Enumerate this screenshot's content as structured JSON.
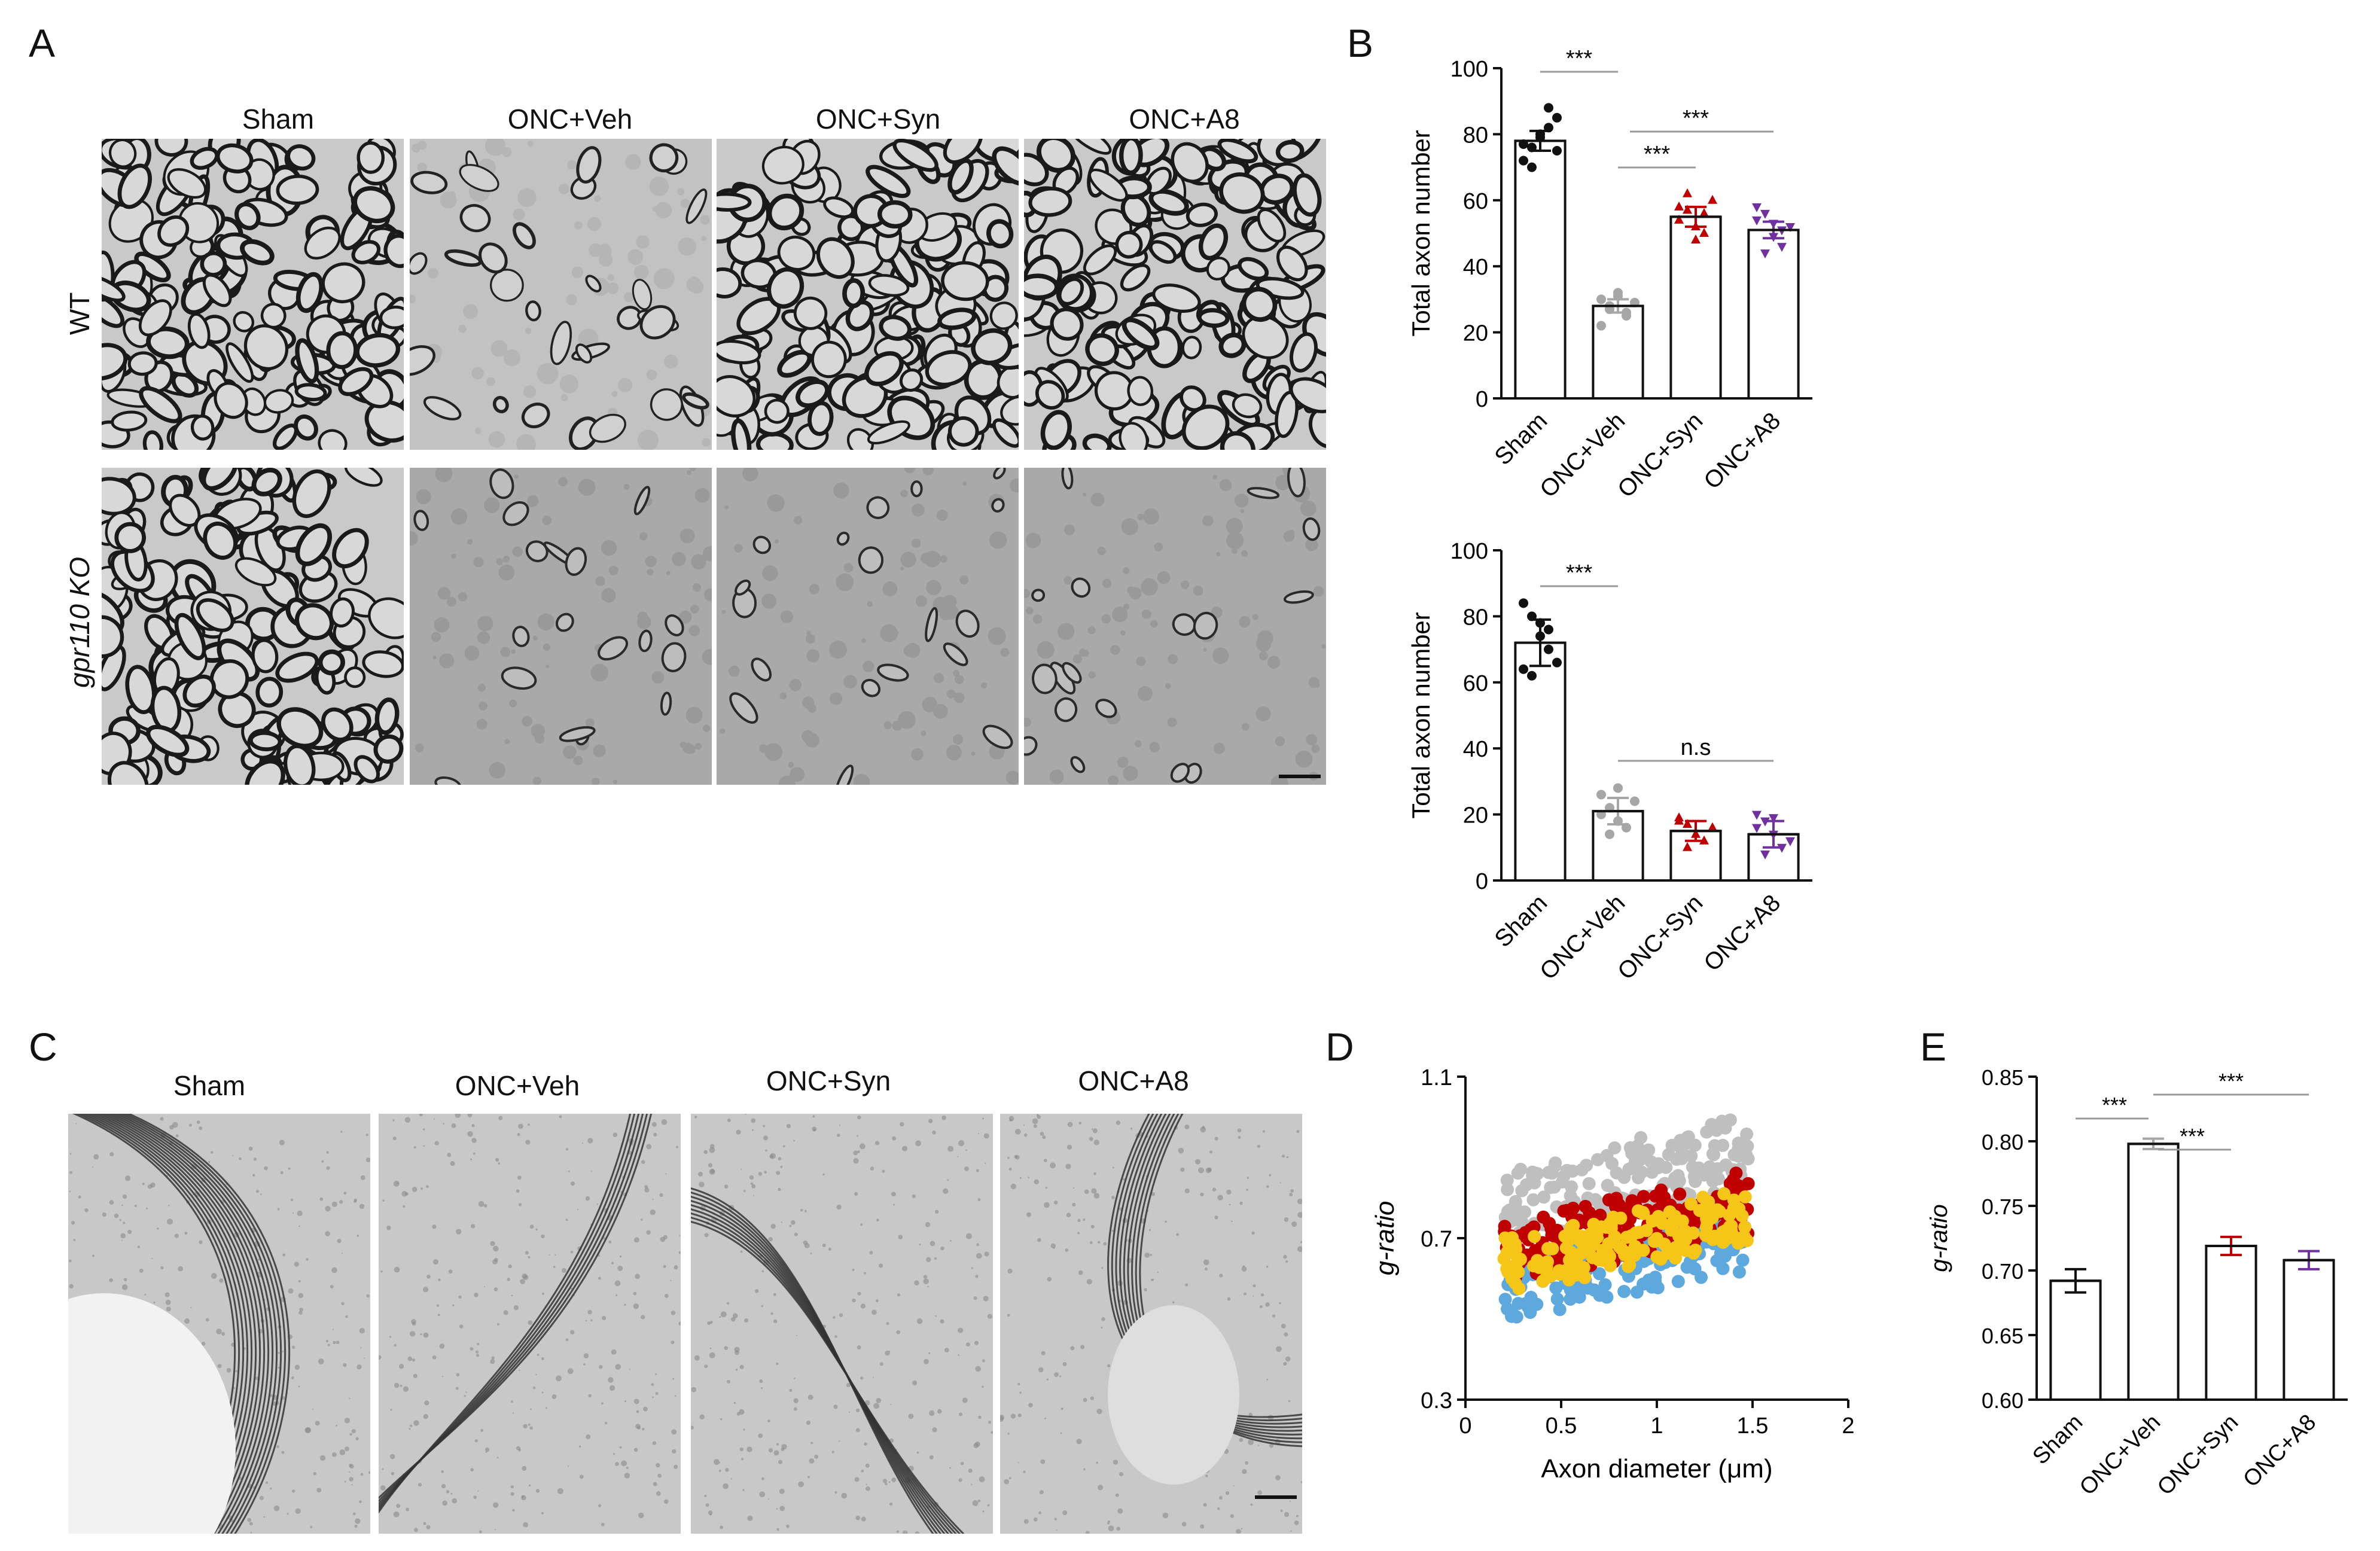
{
  "panels": {
    "A": "A",
    "B": "B",
    "C": "C",
    "D": "D",
    "E": "E"
  },
  "groups": [
    "Sham",
    "ONC+Veh",
    "ONC+Syn",
    "ONC+A8"
  ],
  "rows": [
    "WT",
    "gpr110 KO"
  ],
  "colors": {
    "sham": "#111111",
    "veh": "#a6a6a6",
    "syn": "#c00000",
    "a8": "#7030a0",
    "d_blue": "#5da9dd",
    "d_yellow": "#f5c518",
    "d_red": "#c00000",
    "d_gray": "#bfbfbf"
  },
  "chart_data": [
    {
      "id": "B-top",
      "type": "bar",
      "categories": [
        "Sham",
        "ONC+Veh",
        "ONC+Syn",
        "ONC+A8"
      ],
      "values": [
        78,
        28,
        55,
        51
      ],
      "errors": [
        3,
        2,
        3,
        2.5
      ],
      "points": [
        [
          72,
          76,
          80,
          82,
          85,
          77,
          70,
          79,
          88,
          75
        ],
        [
          30,
          27,
          32,
          25,
          29,
          22,
          28,
          31,
          26
        ],
        [
          58,
          62,
          52,
          50,
          60,
          54,
          57,
          48,
          56
        ],
        [
          54,
          56,
          49,
          46,
          52,
          58,
          44,
          53,
          51
        ]
      ],
      "ylabel": "Total axon number",
      "ylim": [
        0,
        100
      ],
      "yticks": [
        0,
        20,
        40,
        60,
        80,
        100
      ],
      "annotations": [
        {
          "text": "***",
          "from": 0,
          "to": 1
        },
        {
          "text": "***",
          "from": 1,
          "to": 2
        },
        {
          "text": "***",
          "from": 1,
          "to": 3
        }
      ]
    },
    {
      "id": "B-bottom",
      "type": "bar",
      "categories": [
        "Sham",
        "ONC+Veh",
        "ONC+Syn",
        "ONC+A8"
      ],
      "values": [
        72,
        21,
        15,
        14
      ],
      "errors": [
        7,
        4,
        3,
        4
      ],
      "points": [
        [
          84,
          80,
          78,
          70,
          66,
          64,
          62,
          74,
          76
        ],
        [
          26,
          22,
          18,
          16,
          24,
          20,
          14,
          28
        ],
        [
          19,
          17,
          14,
          12,
          16,
          18,
          10
        ],
        [
          20,
          18,
          14,
          10,
          12,
          16,
          8,
          19
        ]
      ],
      "ylabel": "Total axon number",
      "ylim": [
        0,
        100
      ],
      "yticks": [
        0,
        20,
        40,
        60,
        80,
        100
      ],
      "annotations": [
        {
          "text": "***",
          "from": 0,
          "to": 1
        },
        {
          "text": "n.s",
          "from": 1,
          "to": 3
        }
      ]
    },
    {
      "id": "D",
      "type": "scatter",
      "xlabel": "Axon diameter (μm)",
      "ylabel": "g-ratio",
      "xlim": [
        0,
        2
      ],
      "ylim": [
        0.3,
        1.1
      ],
      "xticks": [
        0,
        0.5,
        1,
        1.5,
        2
      ],
      "yticks": [
        0.3,
        0.7,
        1.1
      ]
    },
    {
      "id": "E",
      "type": "bar",
      "categories": [
        "Sham",
        "ONC+Veh",
        "ONC+Syn",
        "ONC+A8"
      ],
      "values": [
        0.692,
        0.798,
        0.719,
        0.708
      ],
      "errors": [
        0.009,
        0.004,
        0.007,
        0.007
      ],
      "ylabel": "g-ratio",
      "ylim": [
        0.6,
        0.85
      ],
      "yticks": [
        0.6,
        0.65,
        0.7,
        0.75,
        0.8,
        0.85
      ],
      "annotations": [
        {
          "text": "***",
          "from": 0,
          "to": 1
        },
        {
          "text": "***",
          "from": 1,
          "to": 2
        },
        {
          "text": "***",
          "from": 1,
          "to": 3
        }
      ]
    }
  ]
}
